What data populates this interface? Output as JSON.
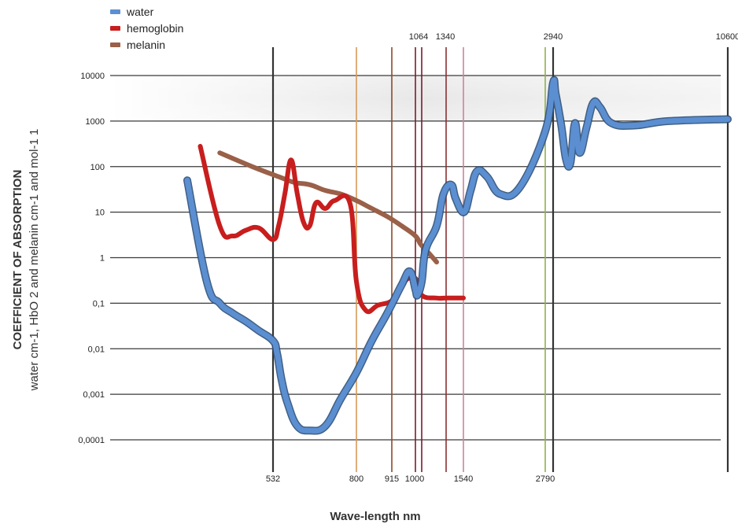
{
  "chart_data": {
    "type": "line",
    "title": "",
    "ylabel_main": "COEFFICIENT OF ABSORPTION",
    "ylabel_sub": "water cm-1, HbO 2 and melanin cm-1 and mol-1 1",
    "xlabel": "Wave-length nm",
    "y_scale": "log",
    "ylim": [
      0.0001,
      10000
    ],
    "y_ticks": [
      "10000",
      "1000",
      "100",
      "10",
      "1",
      "0,1",
      "0,01",
      "0,001",
      "0,0001"
    ],
    "bottom_tick_labels": [
      "532",
      "800",
      "915",
      "1000",
      "1540",
      "2790"
    ],
    "top_tick_labels": [
      "1064",
      "1340",
      "2940",
      "10600"
    ],
    "grid": true,
    "legend_position": "top-left",
    "legend": [
      {
        "name": "water",
        "color": "#5b8fd1"
      },
      {
        "name": "hemoglobin",
        "color": "#c81e1e"
      },
      {
        "name": "melanin",
        "color": "#9a6048"
      }
    ],
    "wavelength_markers": [
      {
        "label": "532",
        "color": "#333333"
      },
      {
        "label": "800",
        "color": "#d59a5a"
      },
      {
        "label": "915",
        "color": "#8b4a2a"
      },
      {
        "label": "1000",
        "color": "#7a1c2a"
      },
      {
        "label": "1064",
        "color": "#7a1c2a"
      },
      {
        "label": "1340",
        "color": "#8a3030"
      },
      {
        "label": "1540",
        "color": "#c9849a"
      },
      {
        "label": "2790",
        "color": "#8fb04e"
      },
      {
        "label": "2940",
        "color": "#333333"
      },
      {
        "label": "10600",
        "color": "#333333"
      }
    ],
    "series": [
      {
        "name": "water",
        "color": "#5b8fd1",
        "points": [
          [
            "400",
            50
          ],
          [
            "430",
            0.3
          ],
          [
            "450",
            0.1
          ],
          [
            "470",
            0.06
          ],
          [
            "490",
            0.04
          ],
          [
            "510",
            0.025
          ],
          [
            "532",
            0.015
          ],
          [
            "545",
            0.008
          ],
          [
            "560",
            0.002
          ],
          [
            "580",
            0.0006
          ],
          [
            "610",
            0.0002
          ],
          [
            "650",
            0.00016
          ],
          [
            "700",
            0.0002
          ],
          [
            "750",
            0.0008
          ],
          [
            "800",
            0.003
          ],
          [
            "850",
            0.015
          ],
          [
            "900",
            0.06
          ],
          [
            "950",
            0.25
          ],
          [
            "980",
            0.5
          ],
          [
            "1000",
            0.2
          ],
          [
            "1020",
            0.15
          ],
          [
            "1064",
            0.3
          ],
          [
            "1100",
            1.5
          ],
          [
            "1200",
            5
          ],
          [
            "1300",
            25
          ],
          [
            "1400",
            40
          ],
          [
            "1450",
            20
          ],
          [
            "1550",
            10
          ],
          [
            "1650",
            30
          ],
          [
            "1750",
            80
          ],
          [
            "1900",
            60
          ],
          [
            "2100",
            25
          ],
          [
            "2400",
            35
          ],
          [
            "2790",
            600
          ],
          [
            "2940",
            7000
          ],
          [
            "3050",
            4000
          ],
          [
            "3300",
            800
          ],
          [
            "3500",
            150
          ],
          [
            "3700",
            120
          ],
          [
            "3900",
            900
          ],
          [
            "4100",
            200
          ],
          [
            "4400",
            700
          ],
          [
            "4700",
            2500
          ],
          [
            "5000",
            2000
          ],
          [
            "5500",
            900
          ],
          [
            "6500",
            800
          ],
          [
            "8000",
            1000
          ],
          [
            "10600",
            1100
          ]
        ]
      },
      {
        "name": "hemoglobin",
        "color": "#c81e1e",
        "points": [
          [
            "420",
            280
          ],
          [
            "450",
            5
          ],
          [
            "470",
            3
          ],
          [
            "490",
            4
          ],
          [
            "510",
            4.5
          ],
          [
            "532",
            2.5
          ],
          [
            "550",
            5
          ],
          [
            "570",
            25
          ],
          [
            "590",
            140
          ],
          [
            "610",
            25
          ],
          [
            "630",
            6
          ],
          [
            "650",
            5
          ],
          [
            "670",
            16
          ],
          [
            "700",
            12
          ],
          [
            "730",
            18
          ],
          [
            "780",
            15
          ],
          [
            "800",
            0.3
          ],
          [
            "830",
            0.07
          ],
          [
            "870",
            0.09
          ],
          [
            "920",
            0.12
          ],
          [
            "960",
            0.3
          ],
          [
            "1000",
            0.35
          ],
          [
            "1064",
            0.15
          ],
          [
            "1200",
            0.13
          ],
          [
            "1340",
            0.13
          ],
          [
            "1540",
            0.13
          ]
        ]
      },
      {
        "name": "melanin",
        "color": "#9a6048",
        "points": [
          [
            "450",
            200
          ],
          [
            "500",
            100
          ],
          [
            "550",
            60
          ],
          [
            "600",
            45
          ],
          [
            "650",
            40
          ],
          [
            "700",
            30
          ],
          [
            "750",
            25
          ],
          [
            "800",
            18
          ],
          [
            "850",
            12
          ],
          [
            "900",
            8
          ],
          [
            "950",
            5
          ],
          [
            "1000",
            3
          ],
          [
            "1050",
            2
          ],
          [
            "1100",
            1.5
          ],
          [
            "1200",
            0.8
          ]
        ]
      }
    ]
  }
}
